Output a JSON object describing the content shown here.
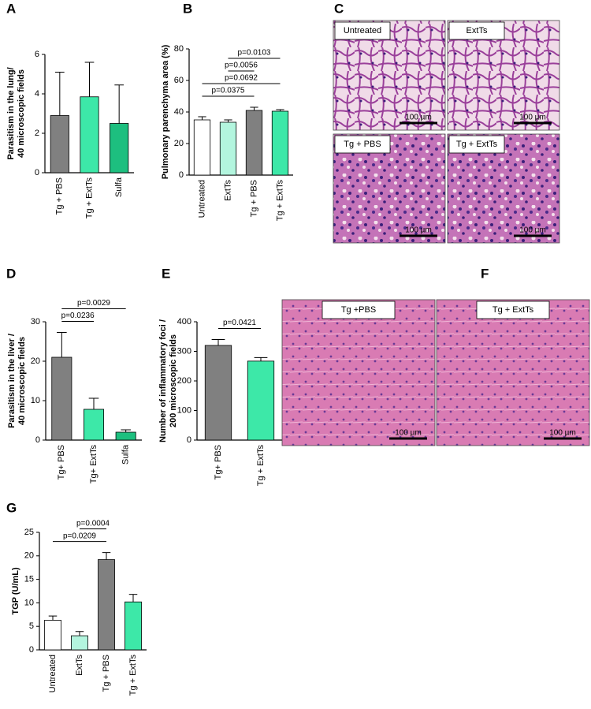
{
  "chart_data": [
    {
      "type": "bar",
      "panel": "A",
      "ylabel": [
        "Parasitism in the lung/",
        "40 microscopic fields"
      ],
      "categories": [
        "Tg + PBS",
        "Tg + ExtTs",
        "Sulfa"
      ],
      "values": [
        2.9,
        3.85,
        2.5
      ],
      "errors": [
        2.2,
        1.75,
        1.95
      ],
      "colors": [
        "#808080",
        "#3de8a8",
        "#1dbf7f"
      ],
      "ylim": [
        0,
        6
      ],
      "yticks": [
        0,
        2,
        4,
        6
      ],
      "comparisons": []
    },
    {
      "type": "bar",
      "panel": "B",
      "ylabel": [
        "Pulmonary parenchyma area (%)"
      ],
      "categories": [
        "Untreated",
        "ExtTs",
        "Tg + PBS",
        "Tg + ExtTs"
      ],
      "values": [
        35,
        33.5,
        41,
        40.5
      ],
      "errors": [
        2,
        1.5,
        2,
        1
      ],
      "colors": [
        "#ffffff",
        "#b3f5de",
        "#808080",
        "#3de8a8"
      ],
      "ylim": [
        0,
        80
      ],
      "yticks": [
        0,
        20,
        40,
        60,
        80
      ],
      "comparisons": [
        {
          "text": "p=0.0375",
          "from": 0,
          "to": 2
        },
        {
          "text": "p=0.0692",
          "from": 0,
          "to": 3
        },
        {
          "text": "p=0.0056",
          "from": 1,
          "to": 2
        },
        {
          "text": "p=0.0103",
          "from": 1,
          "to": 3
        }
      ]
    },
    {
      "type": "bar",
      "panel": "D",
      "ylabel": [
        "Parasitism in the liver /",
        "40 microscopic fields"
      ],
      "categories": [
        "Tg+ PBS",
        "Tg+ ExtTs",
        "Sulfa"
      ],
      "values": [
        21,
        7.8,
        2
      ],
      "errors": [
        6.3,
        2.8,
        0.6
      ],
      "colors": [
        "#808080",
        "#3de8a8",
        "#1dbf7f"
      ],
      "ylim": [
        0,
        30
      ],
      "yticks": [
        0,
        10,
        20,
        30
      ],
      "comparisons": [
        {
          "text": "p=0.0236",
          "from": 0,
          "to": 1
        },
        {
          "text": "p=0.0029",
          "from": 0,
          "to": 2
        }
      ]
    },
    {
      "type": "bar",
      "panel": "E",
      "ylabel": [
        "Number of inflammatory foci /",
        "200 microscopic fields"
      ],
      "categories": [
        "Tg+ PBS",
        "Tg + ExtTs"
      ],
      "values": [
        320,
        267
      ],
      "errors": [
        20,
        12
      ],
      "colors": [
        "#808080",
        "#3de8a8"
      ],
      "ylim": [
        0,
        400
      ],
      "yticks": [
        0,
        100,
        200,
        300,
        400
      ],
      "comparisons": [
        {
          "text": "p=0.0421",
          "from": 0,
          "to": 1
        }
      ]
    },
    {
      "type": "bar",
      "panel": "G",
      "ylabel": [
        "TGP (U/mL)"
      ],
      "categories": [
        "Untreated",
        "ExtTs",
        "Tg + PBS",
        "Tg + ExtTs"
      ],
      "values": [
        6.3,
        3.0,
        19.2,
        10.2
      ],
      "errors": [
        0.9,
        0.9,
        1.5,
        1.6
      ],
      "colors": [
        "#ffffff",
        "#b3f5de",
        "#808080",
        "#3de8a8"
      ],
      "ylim": [
        0,
        25
      ],
      "yticks": [
        0,
        5,
        10,
        15,
        20,
        25
      ],
      "comparisons": [
        {
          "text": "p=0.0209",
          "from": 0,
          "to": 2
        },
        {
          "text": "p=0.0004",
          "from": 1,
          "to": 2
        }
      ]
    }
  ],
  "image_panels": [
    {
      "panel": "C",
      "images": [
        {
          "label": "Untreated",
          "scale": "100 µm"
        },
        {
          "label": "ExtTs",
          "scale": "100 µm"
        },
        {
          "label": "Tg + PBS",
          "scale": "100 µm"
        },
        {
          "label": "Tg + ExtTs",
          "scale": "100 µm"
        }
      ]
    },
    {
      "panel": "F",
      "images": [
        {
          "label": "Tg +PBS",
          "scale": "100 µm"
        },
        {
          "label": "Tg + ExtTs",
          "scale": "100 µm"
        }
      ]
    }
  ]
}
